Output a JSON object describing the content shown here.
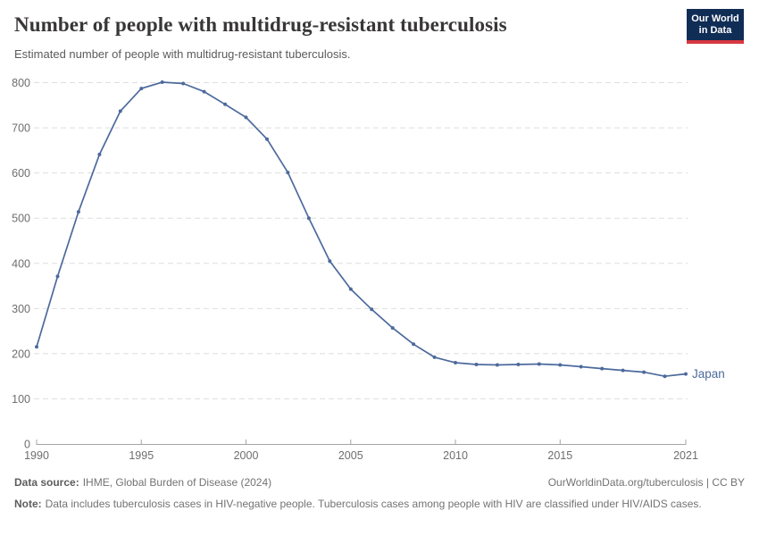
{
  "header": {
    "title": "Number of people with multidrug-resistant tuberculosis",
    "subtitle": "Estimated number of people with multidrug-resistant tuberculosis.",
    "logo": {
      "line1": "Our World",
      "line2": "in Data"
    }
  },
  "chart_data": {
    "type": "line",
    "title": "Number of people with multidrug-resistant tuberculosis",
    "xlabel": "",
    "ylabel": "",
    "xlim": [
      1990,
      2021
    ],
    "ylim": [
      0,
      800
    ],
    "x_ticks": [
      1990,
      1995,
      2000,
      2005,
      2010,
      2015,
      2021
    ],
    "y_ticks": [
      0,
      100,
      200,
      300,
      400,
      500,
      600,
      700,
      800
    ],
    "grid": "horizontal dashed",
    "legend": "end-of-line label",
    "series": [
      {
        "name": "Japan",
        "color": "#4C6A9C",
        "x": [
          1990,
          1991,
          1992,
          1993,
          1994,
          1995,
          1996,
          1997,
          1998,
          1999,
          2000,
          2001,
          2002,
          2003,
          2004,
          2005,
          2006,
          2007,
          2008,
          2009,
          2010,
          2011,
          2012,
          2013,
          2014,
          2015,
          2016,
          2017,
          2018,
          2019,
          2020,
          2021
        ],
        "values": [
          215,
          371,
          514,
          641,
          737,
          787,
          801,
          798,
          780,
          752,
          723,
          675,
          601,
          500,
          405,
          343,
          298,
          257,
          221,
          192,
          180,
          176,
          175,
          176,
          177,
          175,
          171,
          167,
          163,
          159,
          150,
          155
        ]
      }
    ]
  },
  "footer": {
    "datasource_label": "Data source:",
    "datasource_text": "IHME, Global Burden of Disease (2024)",
    "link": "OurWorldinData.org/tuberculosis | CC BY",
    "note_label": "Note:",
    "note_text": "Data includes tuberculosis cases in HIV-negative people. Tuberculosis cases among people with HIV are classified under HIV/AIDS cases."
  },
  "colors": {
    "line": "#4C6A9C",
    "grid": "#dedede",
    "axis": "#a5a5a5",
    "tick_label": "#6e6e6e",
    "title": "#383636",
    "subtitle": "#5b5b5b",
    "footer": "#737373",
    "logo_bg": "#102d55",
    "logo_accent": "#d7383f"
  }
}
